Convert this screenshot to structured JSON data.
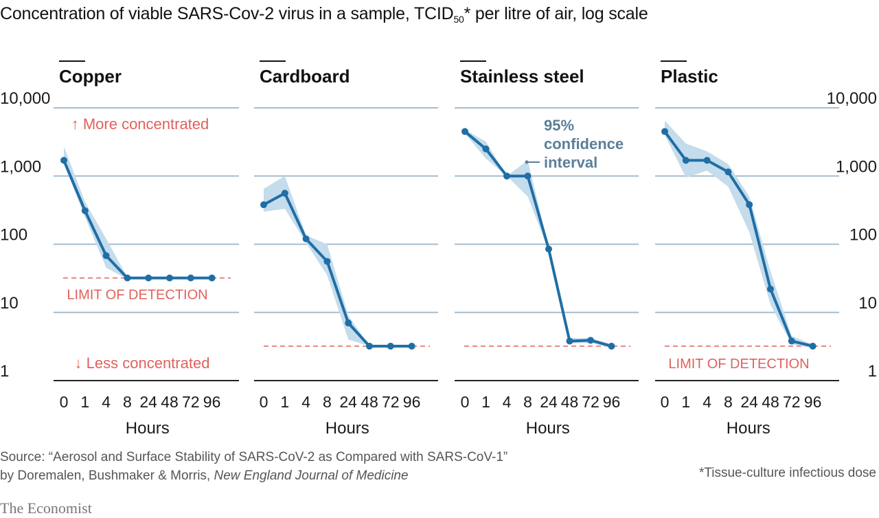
{
  "header": {
    "title_main": "Concentration of viable SARS-Cov-2 virus in a sample, TCID",
    "title_sub": "50",
    "title_rest": "* per litre of air, log scale"
  },
  "chart_data": {
    "type": "line",
    "scale": "log",
    "ylim": [
      1,
      10000
    ],
    "y_ticks": [
      {
        "value": 10000,
        "label": "10,000"
      },
      {
        "value": 1000,
        "label": "1,000"
      },
      {
        "value": 100,
        "label": "100"
      },
      {
        "value": 10,
        "label": "10"
      },
      {
        "value": 1,
        "label": "1"
      }
    ],
    "x_categories": [
      "0",
      "1",
      "4",
      "8",
      "24",
      "48",
      "72",
      "96"
    ],
    "xlabel": "Hours",
    "colors": {
      "line": "#1f6ea6",
      "band": "#c4dceb",
      "grid": "#a6bccd",
      "detection": "#e0615b",
      "annotation": "#5b7f98"
    },
    "panels": [
      {
        "title": "Copper",
        "values": [
          1700,
          310,
          68,
          32,
          32,
          32,
          32,
          32
        ],
        "ci_upper": [
          2700,
          420,
          120,
          33,
          32,
          32,
          32,
          32
        ],
        "ci_lower": [
          1500,
          250,
          45,
          31,
          32,
          32,
          32,
          32
        ],
        "detection_limit": 32,
        "annotations": {
          "more": "↑ More concentrated",
          "less": "↓ Less concentrated",
          "limit": "LIMIT OF DETECTION"
        }
      },
      {
        "title": "Cardboard",
        "values": [
          380,
          560,
          120,
          56,
          7,
          3.2,
          3.2,
          3.2
        ],
        "ci_upper": [
          650,
          1000,
          135,
          100,
          9,
          3.2,
          3.2,
          3.2
        ],
        "ci_lower": [
          300,
          330,
          105,
          35,
          4,
          3.2,
          3.2,
          3.2
        ],
        "detection_limit": 3.2
      },
      {
        "title": "Stainless steel",
        "values": [
          4500,
          2500,
          1000,
          1000,
          85,
          3.8,
          3.9,
          3.2
        ],
        "ci_upper": [
          4800,
          3200,
          1000,
          1700,
          90,
          4.2,
          4.2,
          3.4
        ],
        "ci_lower": [
          4200,
          1800,
          1000,
          500,
          80,
          3.5,
          3.6,
          3.0
        ],
        "detection_limit": 3.2,
        "annotation_ci": [
          "95%",
          "confidence",
          "interval"
        ]
      },
      {
        "title": "Plastic",
        "values": [
          4500,
          1700,
          1700,
          1150,
          380,
          22,
          3.8,
          3.2
        ],
        "ci_upper": [
          6500,
          3000,
          2300,
          1500,
          500,
          40,
          4.5,
          3.4
        ],
        "ci_lower": [
          4000,
          950,
          1200,
          700,
          150,
          13,
          3.4,
          3.0
        ],
        "detection_limit": 3.2,
        "annotations": {
          "limit": "LIMIT OF DETECTION"
        }
      }
    ]
  },
  "footer": {
    "source_line1": "Source: “Aerosol and Surface Stability of SARS-CoV-2 as Compared with SARS-CoV-1”",
    "source_line2_plain": "by Doremalen, Bushmaker & Morris, ",
    "source_line2_italic": "New England Journal of Medicine",
    "footnote": "*Tissue-culture infectious dose",
    "brand": "The Economist"
  }
}
